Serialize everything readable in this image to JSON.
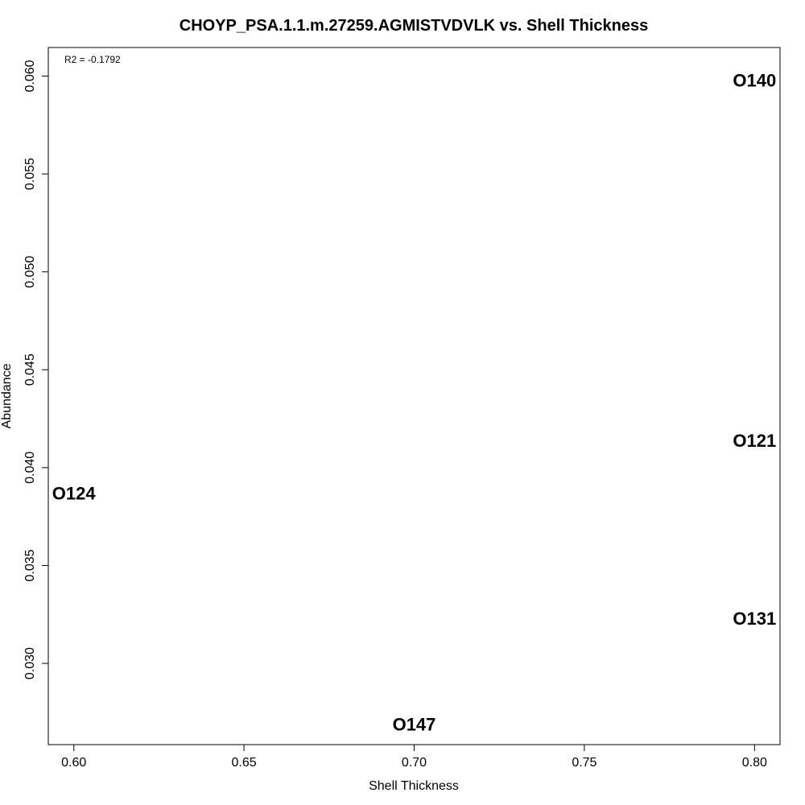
{
  "chart_data": {
    "type": "scatter",
    "title": "CHOYP_PSA.1.1.m.27259.AGMISTVDVLK vs. Shell Thickness",
    "xlabel": "Shell Thickness",
    "ylabel": "Abundance",
    "xlim": [
      0.5925,
      0.8075
    ],
    "ylim": [
      0.02585,
      0.06146
    ],
    "xticks": [
      0.6,
      0.65,
      0.7,
      0.75,
      0.8
    ],
    "xtick_labels": [
      "0.60",
      "0.65",
      "0.70",
      "0.75",
      "0.80"
    ],
    "yticks": [
      0.03,
      0.035,
      0.04,
      0.045,
      0.05,
      0.055,
      0.06
    ],
    "ytick_labels": [
      "0.030",
      "0.035",
      "0.040",
      "0.045",
      "0.050",
      "0.055",
      "0.060"
    ],
    "annotation": "R2 = -0.1792",
    "points": [
      {
        "label": "O140",
        "x": 0.8,
        "y": 0.0598
      },
      {
        "label": "O121",
        "x": 0.8,
        "y": 0.0414
      },
      {
        "label": "O124",
        "x": 0.6,
        "y": 0.0387
      },
      {
        "label": "O131",
        "x": 0.8,
        "y": 0.0323
      },
      {
        "label": "O147",
        "x": 0.7,
        "y": 0.0269
      }
    ],
    "grid": false,
    "legend": "none"
  }
}
